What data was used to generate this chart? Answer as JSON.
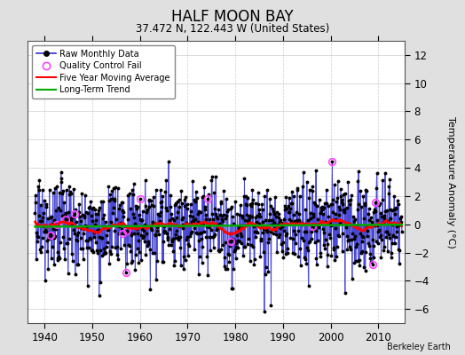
{
  "title": "HALF MOON BAY",
  "subtitle": "37.472 N, 122.443 W (United States)",
  "ylabel": "Temperature Anomaly (°C)",
  "watermark": "Berkeley Earth",
  "year_start": 1938,
  "year_end": 2014,
  "ylim": [
    -7,
    13
  ],
  "yticks": [
    -6,
    -4,
    -2,
    0,
    2,
    4,
    6,
    8,
    10,
    12
  ],
  "xticks": [
    1940,
    1950,
    1960,
    1970,
    1980,
    1990,
    2000,
    2010
  ],
  "xlim": [
    1936.5,
    2015.5
  ],
  "raw_color": "#3333cc",
  "raw_fill_color": "#8888ff",
  "dot_color": "#000000",
  "qc_color": "#ff44ff",
  "ma_color": "#ff0000",
  "trend_color": "#00aa00",
  "bg_color": "#e0e0e0",
  "plot_bg": "#ffffff",
  "seed": 42,
  "n_qc": 14,
  "qc_seed": 77
}
